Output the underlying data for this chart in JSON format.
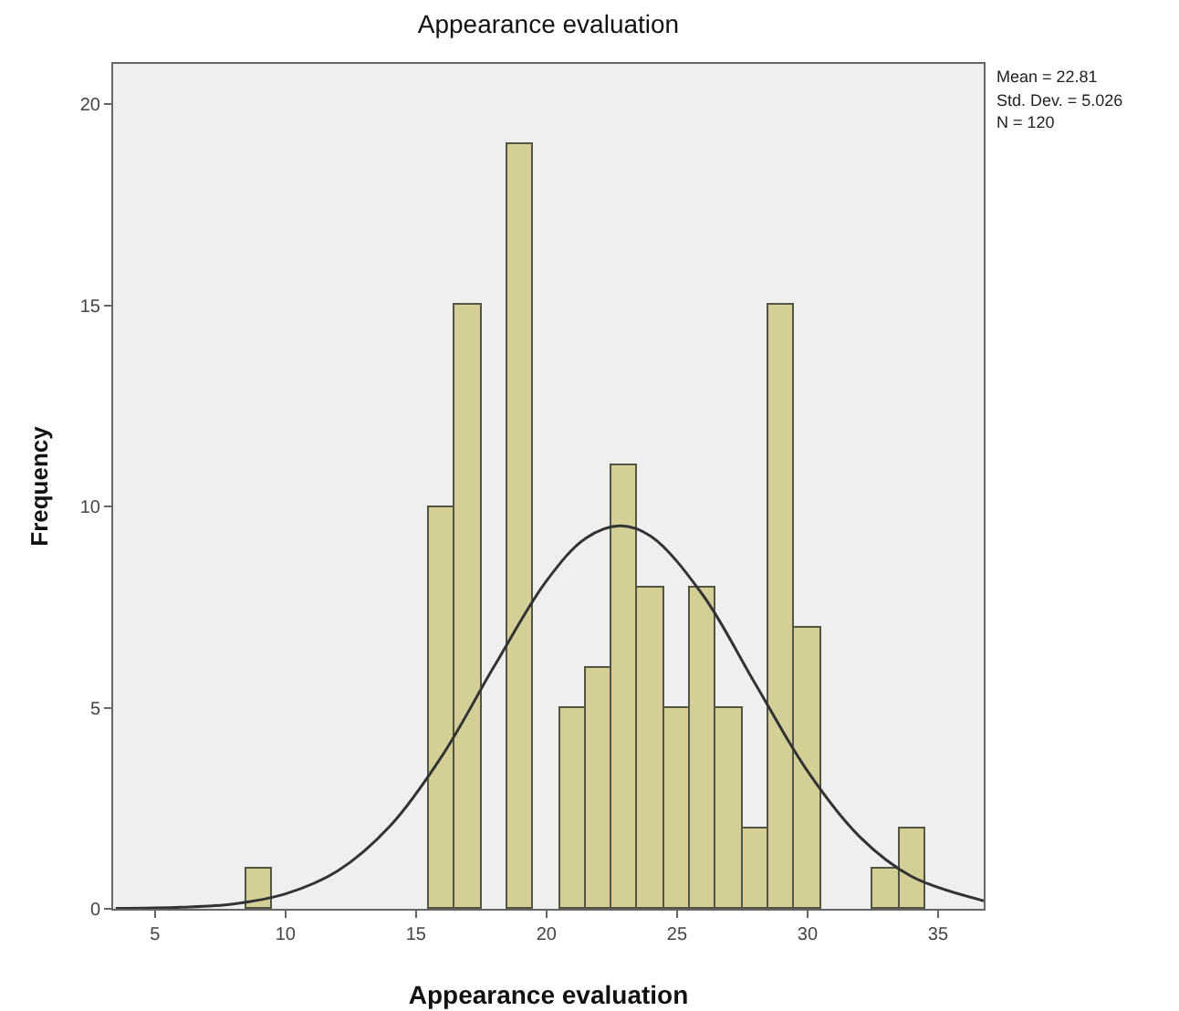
{
  "chart_data": {
    "type": "histogram",
    "title": "Appearance evaluation",
    "xlabel": "Appearance evaluation",
    "ylabel": "Frequency",
    "bins": [
      8.5,
      9.5,
      10.5,
      11.5,
      12.5,
      13.5,
      14.5,
      15.5,
      16.5,
      17.5,
      18.5,
      19.5,
      20.5,
      21.5,
      22.5,
      23.5,
      24.5,
      25.5,
      26.5,
      27.5,
      28.5,
      29.5,
      30.5,
      31.5,
      32.5,
      33.5,
      34.5
    ],
    "values": [
      1,
      0,
      0,
      0,
      0,
      0,
      0,
      10,
      15,
      0,
      19,
      0,
      5,
      6,
      11,
      8,
      5,
      8,
      5,
      2,
      15,
      7,
      0,
      0,
      1,
      2
    ],
    "color": "#d4cf96",
    "series": [
      {
        "type": "line",
        "color": "#333333",
        "x": [
          3.5,
          6,
          8,
          10,
          12,
          14,
          16,
          18,
          20,
          21.5,
          22.8,
          24,
          26,
          28,
          30,
          32,
          34,
          36.75
        ],
        "values": [
          0.01,
          0.04,
          0.12,
          0.37,
          0.94,
          2.05,
          3.8,
          6.03,
          8.15,
          9.21,
          9.52,
          9.26,
          7.79,
          5.59,
          3.42,
          1.79,
          0.8,
          0.2
        ]
      }
    ],
    "xlim": [
      3.4,
      36.75
    ],
    "xticks": [
      5,
      10,
      15,
      20,
      25,
      30,
      35
    ],
    "ylim": [
      0,
      21
    ],
    "yticks": [
      0,
      5,
      10,
      15,
      20
    ],
    "annotations": [
      "Mean = 22.81",
      "Std. Dev. = 5.026",
      "N = 120"
    ],
    "grid": false
  }
}
